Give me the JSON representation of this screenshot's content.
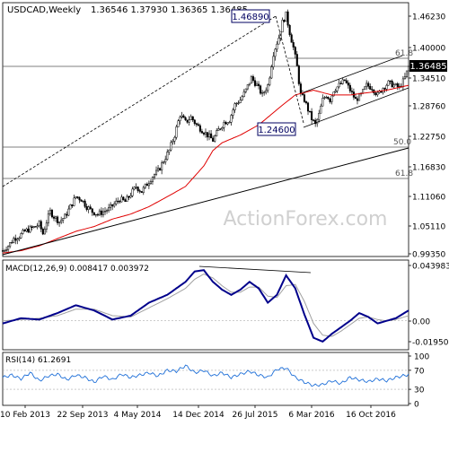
{
  "chart_data": {
    "type": "candlestick-with-indicators",
    "header": {
      "symbol": "USDCAD,Weekly",
      "values": "1.36546 1.37930 1.36365 1.36485"
    },
    "watermark": "ActionForex.com",
    "x_ticks": [
      "10 Feb 2013",
      "22 Sep 2013",
      "4 May 2014",
      "14 Dec 2014",
      "26 Jul 2015",
      "6 Mar 2016",
      "16 Oct 2016"
    ],
    "price_panel": {
      "y_ticks": [
        "1.46230",
        "1.40000",
        "1.34510",
        "1.28760",
        "1.22750",
        "1.16830",
        "1.11060",
        "1.05110",
        "0.99350"
      ],
      "ylim": [
        0.98,
        1.48
      ],
      "last_price_label": "1.36485",
      "ma_color": "#e00000",
      "candle_color": "#000000",
      "price_approx": [
        [
          0,
          1.0
        ],
        [
          3,
          1.01
        ],
        [
          6,
          1.025
        ],
        [
          9,
          1.03
        ],
        [
          12,
          1.04
        ],
        [
          15,
          1.045
        ],
        [
          18,
          1.05
        ],
        [
          20,
          1.055
        ],
        [
          22,
          1.035
        ],
        [
          24,
          1.06
        ],
        [
          26,
          1.08
        ],
        [
          28,
          1.07
        ],
        [
          31,
          1.06
        ],
        [
          34,
          1.07
        ],
        [
          37,
          1.09
        ],
        [
          40,
          1.11
        ],
        [
          43,
          1.105
        ],
        [
          46,
          1.09
        ],
        [
          49,
          1.08
        ],
        [
          52,
          1.075
        ],
        [
          55,
          1.08
        ],
        [
          58,
          1.085
        ],
        [
          61,
          1.095
        ],
        [
          64,
          1.105
        ],
        [
          67,
          1.1
        ],
        [
          70,
          1.115
        ],
        [
          73,
          1.13
        ],
        [
          76,
          1.12
        ],
        [
          79,
          1.135
        ],
        [
          82,
          1.15
        ],
        [
          85,
          1.16
        ],
        [
          88,
          1.18
        ],
        [
          91,
          1.2
        ],
        [
          94,
          1.23
        ],
        [
          97,
          1.27
        ],
        [
          100,
          1.255
        ],
        [
          103,
          1.265
        ],
        [
          106,
          1.25
        ],
        [
          109,
          1.24
        ],
        [
          112,
          1.23
        ],
        [
          115,
          1.22
        ],
        [
          118,
          1.24
        ],
        [
          121,
          1.255
        ],
        [
          124,
          1.26
        ],
        [
          127,
          1.29
        ],
        [
          130,
          1.3
        ],
        [
          133,
          1.32
        ],
        [
          136,
          1.345
        ],
        [
          139,
          1.33
        ],
        [
          142,
          1.31
        ],
        [
          145,
          1.33
        ],
        [
          148,
          1.39
        ],
        [
          151,
          1.42
        ],
        [
          153,
          1.45
        ],
        [
          155,
          1.465
        ],
        [
          157,
          1.43
        ],
        [
          159,
          1.4
        ],
        [
          161,
          1.365
        ],
        [
          163,
          1.31
        ],
        [
          165,
          1.3
        ],
        [
          167,
          1.28
        ],
        [
          169,
          1.262
        ],
        [
          171,
          1.25
        ],
        [
          173,
          1.27
        ],
        [
          175,
          1.3
        ],
        [
          177,
          1.31
        ],
        [
          179,
          1.3
        ],
        [
          181,
          1.32
        ],
        [
          184,
          1.33
        ],
        [
          187,
          1.34
        ],
        [
          190,
          1.32
        ],
        [
          193,
          1.3
        ],
        [
          196,
          1.31
        ],
        [
          199,
          1.33
        ],
        [
          202,
          1.325
        ],
        [
          205,
          1.31
        ],
        [
          208,
          1.325
        ],
        [
          211,
          1.335
        ],
        [
          214,
          1.33
        ],
        [
          217,
          1.325
        ],
        [
          220,
          1.345
        ],
        [
          222,
          1.365
        ]
      ],
      "ma_approx": [
        [
          0,
          0.995
        ],
        [
          10,
          1.0
        ],
        [
          20,
          1.01
        ],
        [
          30,
          1.025
        ],
        [
          40,
          1.04
        ],
        [
          50,
          1.05
        ],
        [
          60,
          1.065
        ],
        [
          70,
          1.075
        ],
        [
          80,
          1.09
        ],
        [
          90,
          1.11
        ],
        [
          100,
          1.13
        ],
        [
          110,
          1.17
        ],
        [
          115,
          1.2
        ],
        [
          120,
          1.215
        ],
        [
          130,
          1.23
        ],
        [
          140,
          1.25
        ],
        [
          150,
          1.28
        ],
        [
          160,
          1.31
        ],
        [
          170,
          1.32
        ],
        [
          180,
          1.31
        ],
        [
          190,
          1.31
        ],
        [
          200,
          1.315
        ],
        [
          210,
          1.32
        ],
        [
          222,
          1.33
        ]
      ],
      "annotations": {
        "high_label": "1.46890",
        "low_label": "1.24600",
        "fib_top": "61.8",
        "fib_mid": "50.0",
        "fib_low": "61.8"
      }
    },
    "macd_panel": {
      "label": "MACD(12,26,9) 0.008417 0.003972",
      "y_ticks": [
        "0.043983",
        "0.00",
        "-0.019501"
      ],
      "ylim": [
        -0.0195,
        0.044
      ],
      "line_color": "#00008b",
      "signal_color": "#a0a0a0",
      "macd_approx": [
        [
          0,
          -0.002
        ],
        [
          10,
          0.002
        ],
        [
          20,
          0.001
        ],
        [
          30,
          0.006
        ],
        [
          40,
          0.012
        ],
        [
          50,
          0.008
        ],
        [
          60,
          0.001
        ],
        [
          70,
          0.004
        ],
        [
          80,
          0.014
        ],
        [
          90,
          0.02
        ],
        [
          100,
          0.03
        ],
        [
          105,
          0.038
        ],
        [
          110,
          0.039
        ],
        [
          115,
          0.03
        ],
        [
          120,
          0.024
        ],
        [
          125,
          0.02
        ],
        [
          130,
          0.024
        ],
        [
          135,
          0.03
        ],
        [
          140,
          0.025
        ],
        [
          145,
          0.014
        ],
        [
          150,
          0.02
        ],
        [
          155,
          0.035
        ],
        [
          160,
          0.025
        ],
        [
          165,
          0.005
        ],
        [
          170,
          -0.013
        ],
        [
          175,
          -0.016
        ],
        [
          180,
          -0.01
        ],
        [
          185,
          -0.005
        ],
        [
          190,
          0.0
        ],
        [
          195,
          0.006
        ],
        [
          200,
          0.003
        ],
        [
          205,
          -0.002
        ],
        [
          210,
          0.0
        ],
        [
          215,
          0.002
        ],
        [
          222,
          0.008
        ]
      ],
      "signal_approx": [
        [
          0,
          0.0
        ],
        [
          10,
          0.001
        ],
        [
          20,
          0.002
        ],
        [
          30,
          0.004
        ],
        [
          40,
          0.009
        ],
        [
          50,
          0.009
        ],
        [
          60,
          0.004
        ],
        [
          70,
          0.003
        ],
        [
          80,
          0.01
        ],
        [
          90,
          0.017
        ],
        [
          100,
          0.025
        ],
        [
          105,
          0.032
        ],
        [
          110,
          0.036
        ],
        [
          115,
          0.033
        ],
        [
          120,
          0.027
        ],
        [
          125,
          0.022
        ],
        [
          130,
          0.022
        ],
        [
          135,
          0.026
        ],
        [
          140,
          0.026
        ],
        [
          145,
          0.019
        ],
        [
          150,
          0.018
        ],
        [
          155,
          0.027
        ],
        [
          160,
          0.028
        ],
        [
          165,
          0.015
        ],
        [
          170,
          -0.002
        ],
        [
          175,
          -0.011
        ],
        [
          180,
          -0.012
        ],
        [
          185,
          -0.008
        ],
        [
          190,
          -0.003
        ],
        [
          195,
          0.002
        ],
        [
          200,
          0.003
        ],
        [
          205,
          0.001
        ],
        [
          210,
          0.0
        ],
        [
          215,
          0.001
        ],
        [
          222,
          0.004
        ]
      ]
    },
    "rsi_panel": {
      "label": "RSI(14) 61.2691",
      "y_ticks": [
        "100",
        "70",
        "30",
        "0"
      ],
      "ylim": [
        0,
        100
      ],
      "line_color": "#1e6fd8",
      "rsi_approx": [
        [
          0,
          55
        ],
        [
          5,
          60
        ],
        [
          10,
          52
        ],
        [
          15,
          65
        ],
        [
          20,
          48
        ],
        [
          25,
          58
        ],
        [
          30,
          62
        ],
        [
          35,
          50
        ],
        [
          40,
          60
        ],
        [
          45,
          55
        ],
        [
          50,
          45
        ],
        [
          55,
          58
        ],
        [
          60,
          50
        ],
        [
          65,
          62
        ],
        [
          70,
          55
        ],
        [
          75,
          60
        ],
        [
          80,
          65
        ],
        [
          85,
          58
        ],
        [
          90,
          70
        ],
        [
          95,
          68
        ],
        [
          100,
          80
        ],
        [
          105,
          65
        ],
        [
          110,
          70
        ],
        [
          115,
          58
        ],
        [
          120,
          65
        ],
        [
          125,
          55
        ],
        [
          130,
          62
        ],
        [
          135,
          68
        ],
        [
          140,
          60
        ],
        [
          145,
          55
        ],
        [
          150,
          72
        ],
        [
          155,
          75
        ],
        [
          160,
          55
        ],
        [
          165,
          45
        ],
        [
          170,
          38
        ],
        [
          175,
          40
        ],
        [
          180,
          48
        ],
        [
          185,
          42
        ],
        [
          190,
          55
        ],
        [
          195,
          50
        ],
        [
          200,
          46
        ],
        [
          205,
          52
        ],
        [
          210,
          48
        ],
        [
          215,
          55
        ],
        [
          222,
          61
        ]
      ]
    }
  }
}
